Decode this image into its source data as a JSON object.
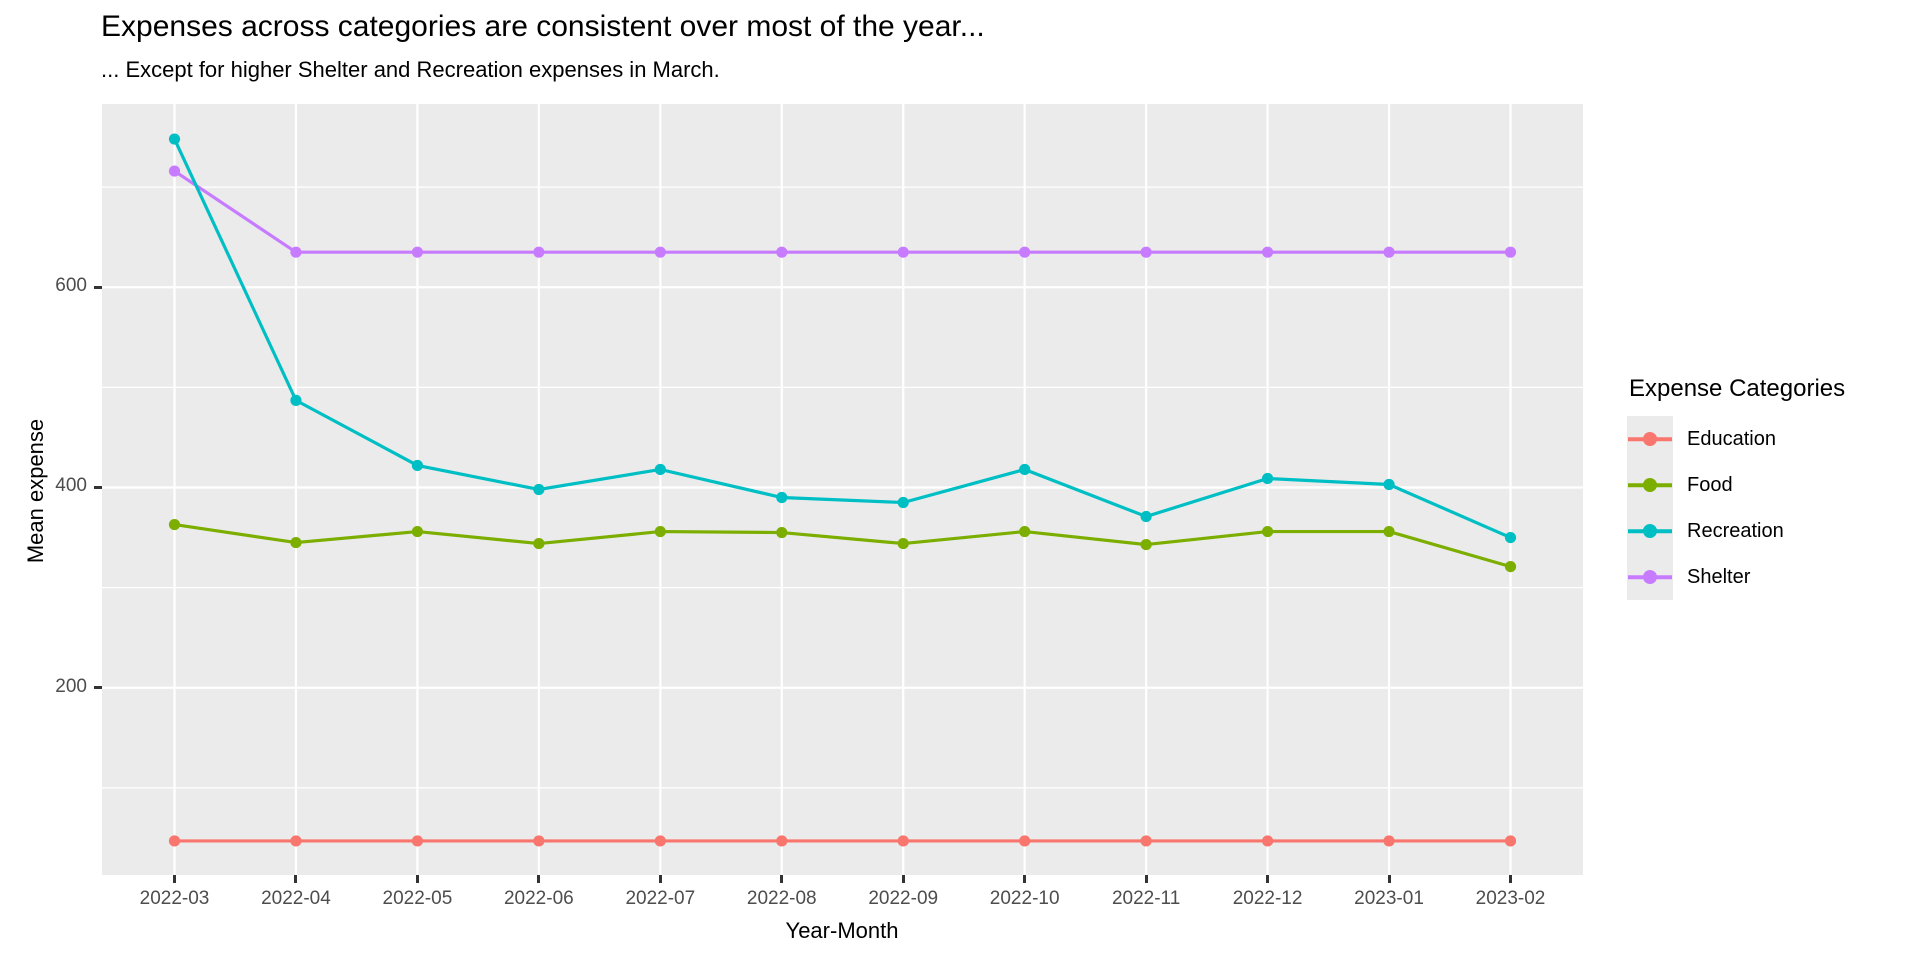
{
  "chart_data": {
    "type": "line",
    "title": "Expenses across categories are consistent over most of the year...",
    "subtitle": "... Except for higher Shelter and Recreation expenses in March.",
    "xlabel": "Year-Month",
    "ylabel": "Mean expense",
    "legend_title": "Expense Categories",
    "legend_position": "right",
    "categories": [
      "2022-03",
      "2022-04",
      "2022-05",
      "2022-06",
      "2022-07",
      "2022-08",
      "2022-09",
      "2022-10",
      "2022-11",
      "2022-12",
      "2023-01",
      "2023-02"
    ],
    "y_ticks": [
      200,
      400,
      600
    ],
    "y_minor_ticks": [
      100,
      300,
      500,
      700
    ],
    "ylim": [
      13,
      783
    ],
    "grid": "white major and minor horizontal lines plus white vertical category lines on gray panel",
    "panel_color": "#EBEBEB",
    "gridline_color": "#FFFFFF",
    "tick_label_color": "#4d4d4d",
    "series": [
      {
        "name": "Education",
        "color": "#F8766D",
        "values": [
          47,
          47,
          47,
          47,
          47,
          47,
          47,
          47,
          47,
          47,
          47,
          47
        ]
      },
      {
        "name": "Food",
        "color": "#7CAE00",
        "values": [
          363,
          345,
          356,
          344,
          356,
          355,
          344,
          356,
          343,
          356,
          356,
          321
        ]
      },
      {
        "name": "Recreation",
        "color": "#00BFC4",
        "values": [
          748,
          487,
          422,
          398,
          418,
          390,
          385,
          418,
          371,
          409,
          403,
          350
        ]
      },
      {
        "name": "Shelter",
        "color": "#C77CFF",
        "values": [
          716,
          635,
          635,
          635,
          635,
          635,
          635,
          635,
          635,
          635,
          635,
          635
        ]
      }
    ]
  }
}
